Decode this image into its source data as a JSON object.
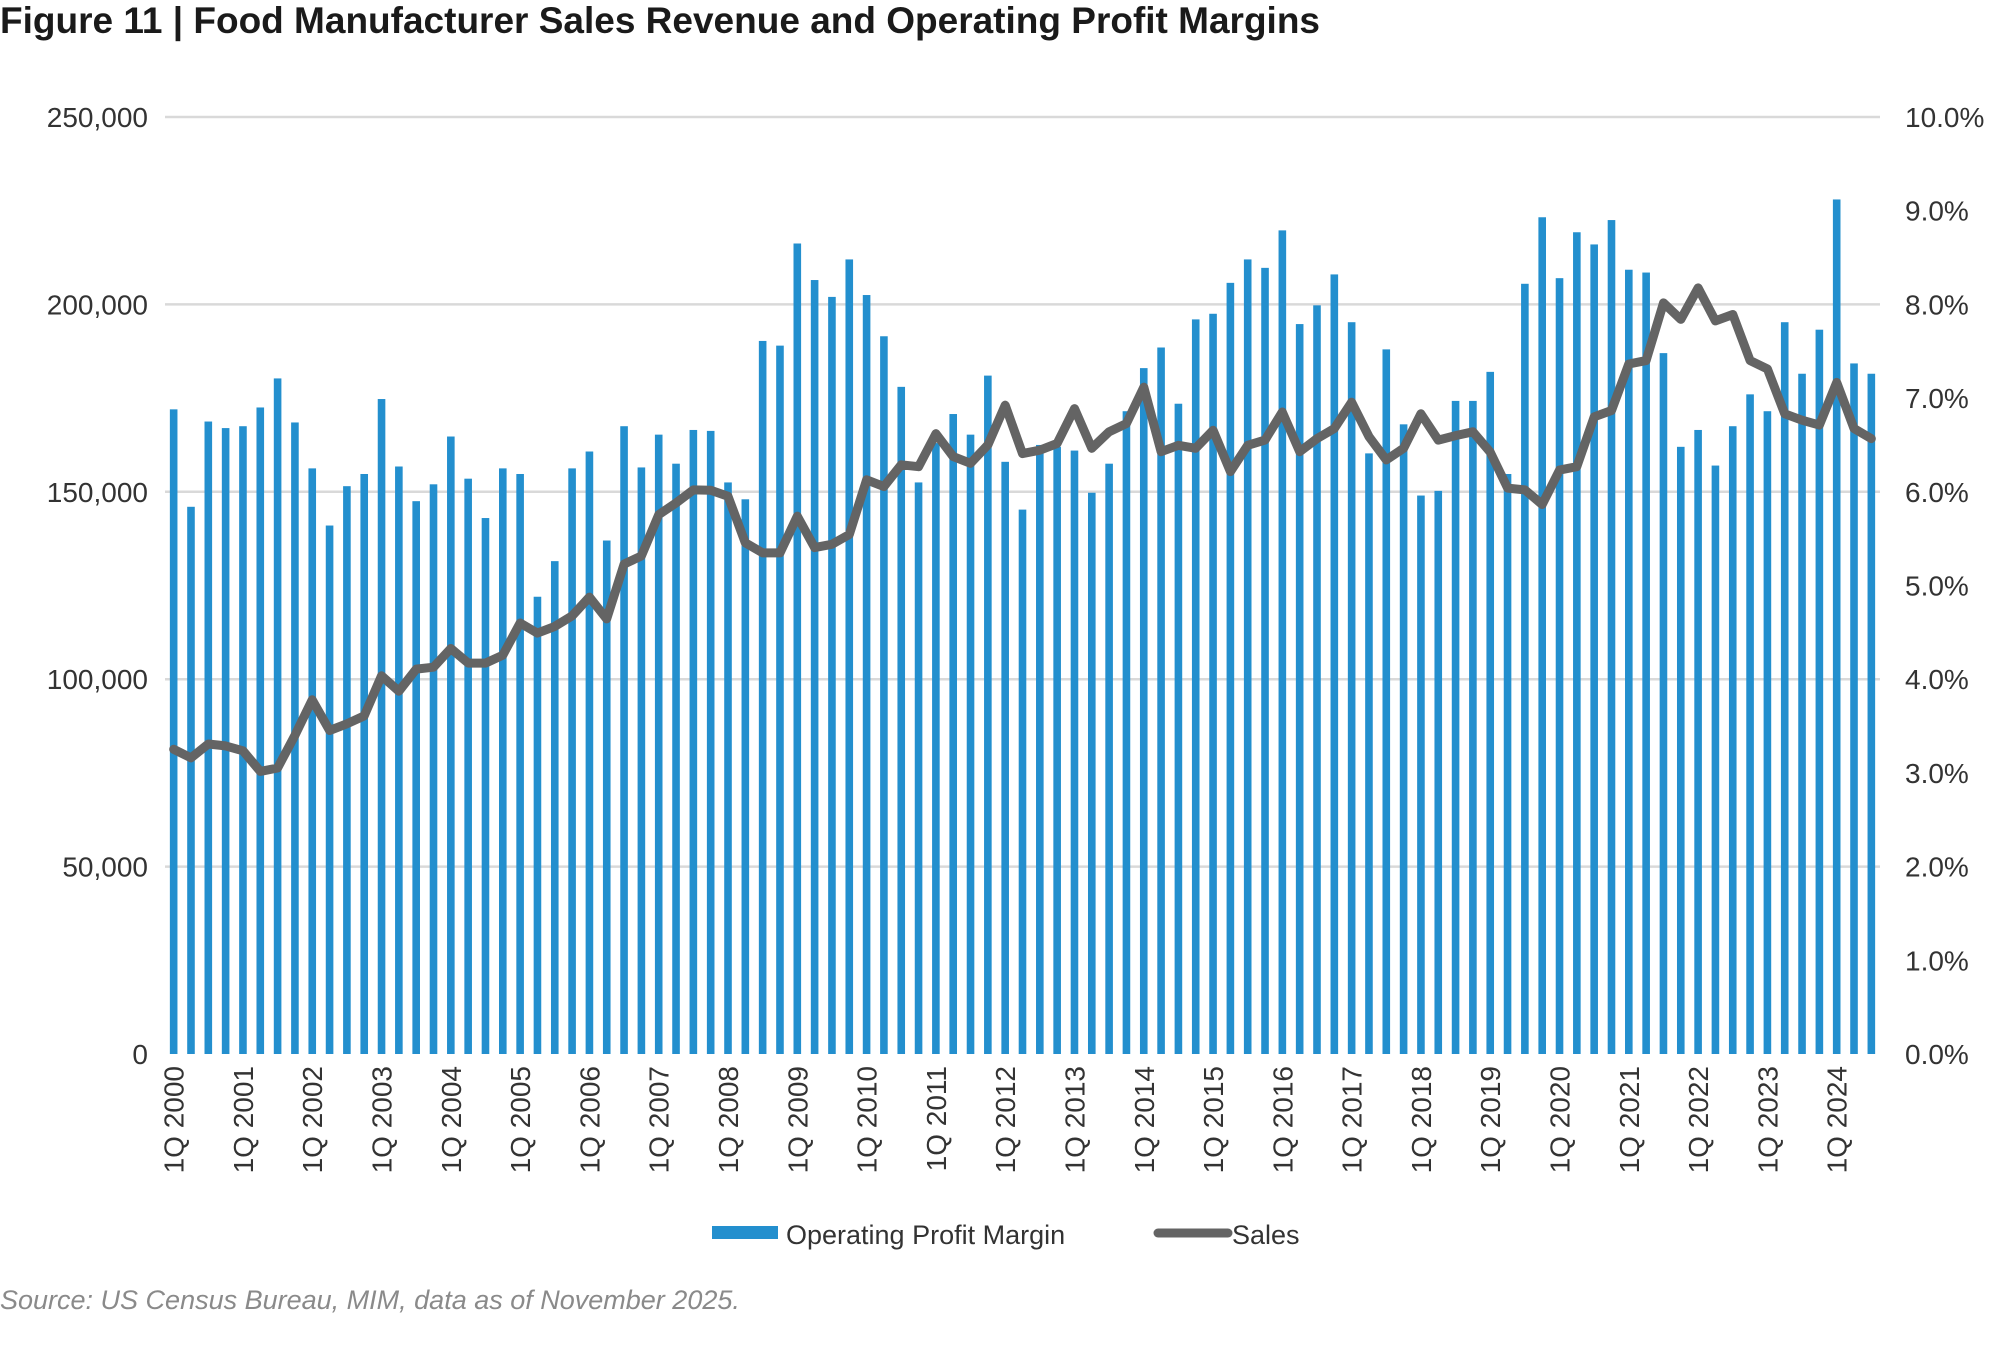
{
  "chart_data": {
    "type": "bar+line",
    "title": "Figure 11 | Food Manufacturer Sales Revenue and Operating Profit Margins",
    "source": "Source: US Census Bureau, MIM, data as of November 2025.",
    "x_tick_labels": [
      "1Q 2000",
      "1Q 2001",
      "1Q 2002",
      "1Q 2003",
      "1Q 2004",
      "1Q 2005",
      "1Q 2006",
      "1Q 2007",
      "1Q 2008",
      "1Q 2009",
      "1Q 2010",
      "1Q 2011",
      "1Q 2012",
      "1Q 2013",
      "1Q 2014",
      "1Q 2015",
      "1Q 2016",
      "1Q 2017",
      "1Q 2018",
      "1Q 2019",
      "1Q 2020",
      "1Q 2021",
      "1Q 2022",
      "1Q 2023",
      "1Q 2024"
    ],
    "left_axis": {
      "ylim": [
        0,
        250000
      ],
      "tick_labels": [
        "0",
        "50,000",
        "100,000",
        "150,000",
        "200,000",
        "250,000"
      ]
    },
    "right_axis": {
      "ylim": [
        0,
        10
      ],
      "tick_labels": [
        "0.0%",
        "1.0%",
        "2.0%",
        "3.0%",
        "4.0%",
        "5.0%",
        "6.0%",
        "7.0%",
        "8.0%",
        "9.0%",
        "10.0%"
      ]
    },
    "grid": "horizontal",
    "legend_position": "bottom",
    "series": [
      {
        "name": "Operating Profit Margin",
        "type": "bar",
        "axis": "right",
        "unit": "%",
        "color": "#238fce",
        "values": [
          6.88,
          5.84,
          6.75,
          6.68,
          6.7,
          6.9,
          7.21,
          6.74,
          6.25,
          5.64,
          6.06,
          6.19,
          6.99,
          6.27,
          5.9,
          6.08,
          6.59,
          6.14,
          5.72,
          6.25,
          6.19,
          4.88,
          5.26,
          6.25,
          6.43,
          5.48,
          6.7,
          6.26,
          6.61,
          6.3,
          6.66,
          6.65,
          6.1,
          5.92,
          7.61,
          7.56,
          8.65,
          8.26,
          8.08,
          8.48,
          8.1,
          7.66,
          7.12,
          6.1,
          6.52,
          6.83,
          6.61,
          7.24,
          6.32,
          5.81,
          6.5,
          6.48,
          6.44,
          5.99,
          6.3,
          6.86,
          7.32,
          7.54,
          6.94,
          7.84,
          7.9,
          8.23,
          8.48,
          8.39,
          8.79,
          7.79,
          7.99,
          8.32,
          7.81,
          6.41,
          7.52,
          6.72,
          5.96,
          6.01,
          6.97,
          6.97,
          7.28,
          6.19,
          8.22,
          8.93,
          8.28,
          8.77,
          8.64,
          8.9,
          8.37,
          8.34,
          7.48,
          6.48,
          6.66,
          6.28,
          6.7,
          7.04,
          6.86,
          7.81,
          7.26,
          7.73,
          9.12,
          7.37,
          7.26
        ]
      },
      {
        "name": "Sales",
        "type": "line",
        "axis": "left",
        "color": "#646464",
        "values": [
          81300,
          79000,
          82700,
          82200,
          80900,
          75400,
          76300,
          85000,
          94500,
          86300,
          88100,
          90200,
          100900,
          96800,
          102700,
          103200,
          108200,
          104300,
          104300,
          106400,
          115000,
          112300,
          114100,
          116900,
          121900,
          116100,
          130700,
          132900,
          143900,
          147000,
          150500,
          150400,
          148800,
          136400,
          133700,
          133700,
          143500,
          135100,
          136000,
          138600,
          153200,
          151400,
          157200,
          156700,
          165500,
          159400,
          157600,
          162500,
          173100,
          160200,
          161100,
          162900,
          172200,
          161600,
          166000,
          168200,
          177900,
          160700,
          162400,
          161600,
          166400,
          155400,
          162400,
          163800,
          171300,
          160700,
          164200,
          166900,
          173900,
          164700,
          158500,
          161600,
          170800,
          163800,
          165000,
          166000,
          160600,
          151000,
          150500,
          146600,
          155800,
          156700,
          170000,
          171700,
          184100,
          185000,
          200400,
          196000,
          204400,
          195600,
          197300,
          185000,
          182800,
          170800,
          169100,
          167800,
          179200,
          166900,
          164200
        ]
      }
    ]
  }
}
